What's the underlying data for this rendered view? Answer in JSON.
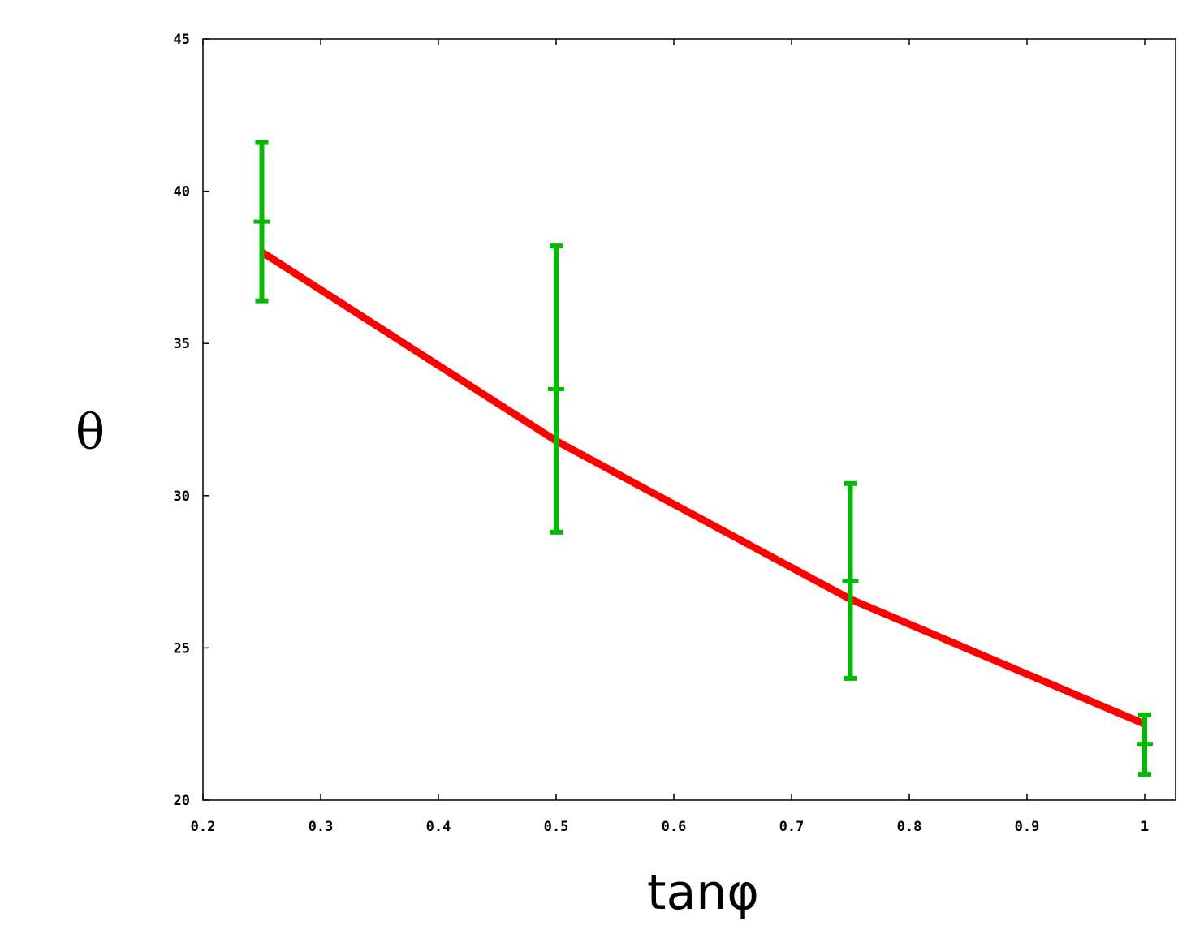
{
  "chart_data": {
    "type": "line",
    "title": "",
    "xlabel": "tanφ",
    "ylabel": "θ",
    "xlim": [
      0.2,
      1.0
    ],
    "ylim": [
      20,
      45
    ],
    "x_ticks": [
      0.2,
      0.3,
      0.4,
      0.5,
      0.6,
      0.7,
      0.8,
      0.9,
      1.0
    ],
    "x_tick_labels": [
      "0.2",
      "0.3",
      "0.4",
      "0.5",
      "0.6",
      "0.7",
      "0.8",
      "0.9",
      "1"
    ],
    "y_ticks": [
      20,
      25,
      30,
      35,
      40,
      45
    ],
    "y_tick_labels": [
      "20",
      "25",
      "30",
      "35",
      "40",
      "45"
    ],
    "grid": false,
    "legend": "none",
    "series": [
      {
        "kind": "line",
        "color": "#ff0000",
        "x": [
          0.25,
          0.5,
          0.75,
          1.0
        ],
        "y": [
          38.0,
          31.8,
          26.6,
          22.5
        ]
      },
      {
        "kind": "errorbar",
        "color": "#00bb00",
        "x": [
          0.25,
          0.5,
          0.75,
          1.0
        ],
        "y": [
          39.0,
          33.5,
          27.2,
          21.85
        ],
        "yerr_low": [
          36.4,
          28.8,
          24.0,
          20.85
        ],
        "yerr_high": [
          41.6,
          38.2,
          30.4,
          22.8
        ]
      }
    ]
  }
}
